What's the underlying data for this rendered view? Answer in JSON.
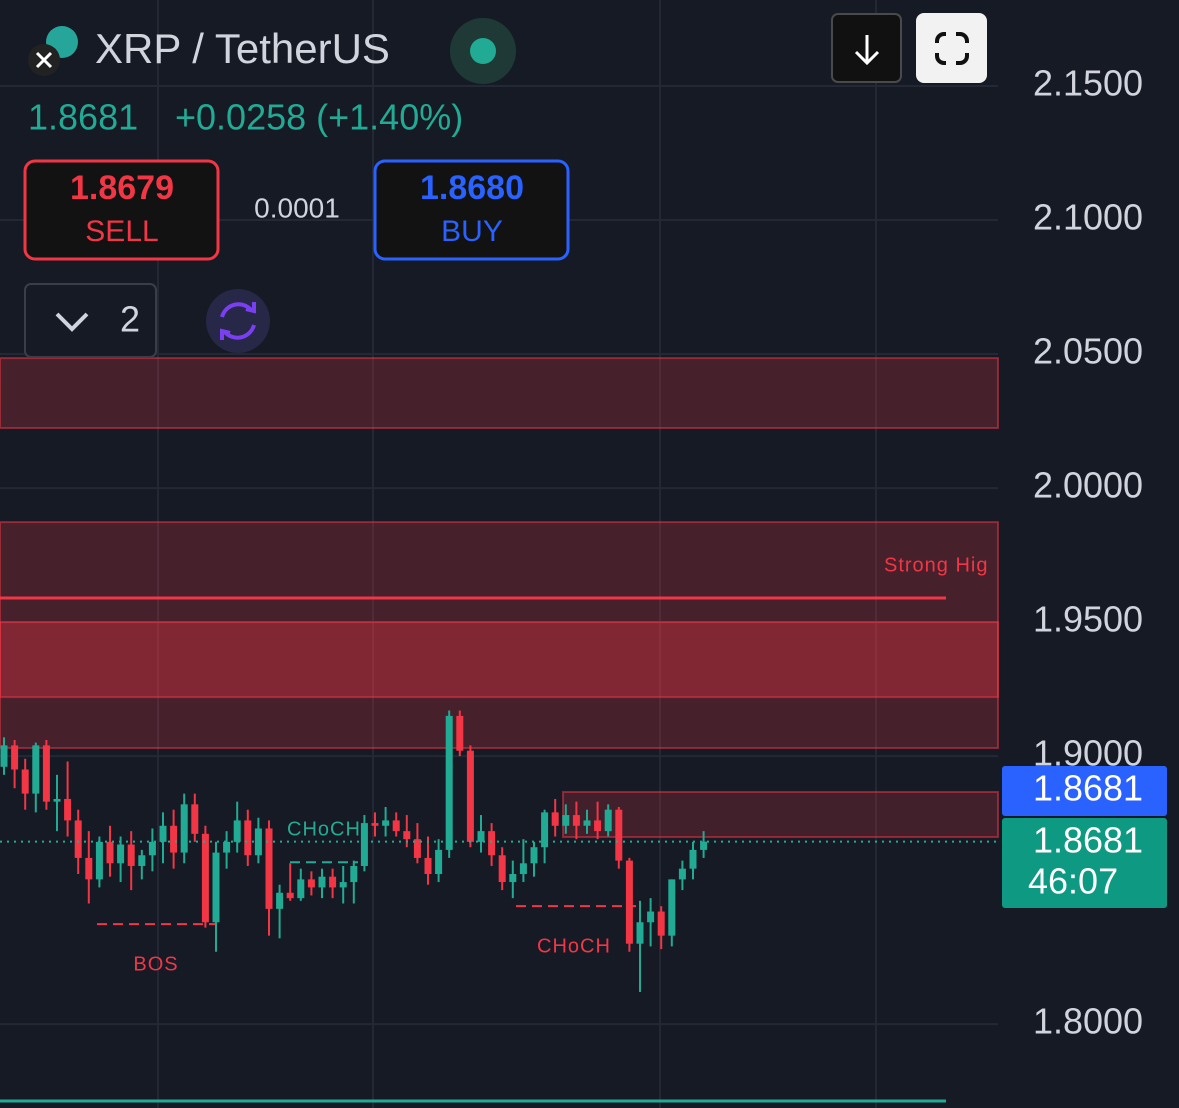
{
  "header": {
    "symbol": "XRP / TetherUS",
    "price": "1.8681",
    "change": "+0.0258 (+1.40%)",
    "sell_price": "1.8679",
    "sell_label": "SELL",
    "spread": "0.0001",
    "buy_price": "1.8680",
    "buy_label": "BUY",
    "count": "2"
  },
  "price_labels": {
    "bid": "1.8681",
    "last": "1.8681",
    "countdown": "46:07"
  },
  "chart_data": {
    "type": "candlestick",
    "up_color": "#22ab94",
    "down_color": "#f23645",
    "open": [
      1.896,
      1.904,
      1.895,
      1.886,
      1.904,
      1.883,
      1.884,
      1.876,
      1.862,
      1.854,
      1.868,
      1.86,
      1.867,
      1.859,
      1.863,
      1.868,
      1.874,
      1.864,
      1.882,
      1.871,
      1.838,
      1.864,
      1.868,
      1.876,
      1.863,
      1.873,
      1.843,
      1.849,
      1.847,
      1.854,
      1.851,
      1.855,
      1.851,
      1.853,
      1.859,
      1.875,
      1.874,
      1.876,
      1.872,
      1.869,
      1.862,
      1.856,
      1.865,
      1.915,
      1.902,
      1.868,
      1.872,
      1.863,
      1.853,
      1.856,
      1.86,
      1.866,
      1.879,
      1.874,
      1.878,
      1.874,
      1.876,
      1.872,
      1.88,
      1.861,
      1.83,
      1.838,
      1.842,
      1.833,
      1.854,
      1.858,
      1.865
    ],
    "high": [
      1.907,
      1.906,
      1.899,
      1.905,
      1.906,
      1.893,
      1.898,
      1.88,
      1.872,
      1.87,
      1.874,
      1.87,
      1.872,
      1.865,
      1.873,
      1.879,
      1.88,
      1.886,
      1.886,
      1.874,
      1.868,
      1.872,
      1.883,
      1.88,
      1.877,
      1.876,
      1.852,
      1.86,
      1.858,
      1.857,
      1.858,
      1.858,
      1.859,
      1.861,
      1.878,
      1.879,
      1.881,
      1.879,
      1.878,
      1.875,
      1.87,
      1.869,
      1.917,
      1.917,
      1.904,
      1.878,
      1.875,
      1.866,
      1.861,
      1.869,
      1.868,
      1.88,
      1.884,
      1.882,
      1.883,
      1.88,
      1.883,
      1.882,
      1.881,
      1.862,
      1.846,
      1.847,
      1.844,
      1.854,
      1.861,
      1.868,
      1.872
    ],
    "low": [
      1.893,
      1.888,
      1.88,
      1.879,
      1.88,
      1.872,
      1.87,
      1.856,
      1.845,
      1.851,
      1.855,
      1.853,
      1.85,
      1.854,
      1.857,
      1.86,
      1.858,
      1.86,
      1.868,
      1.836,
      1.827,
      1.858,
      1.864,
      1.859,
      1.86,
      1.833,
      1.832,
      1.846,
      1.846,
      1.848,
      1.847,
      1.847,
      1.845,
      1.845,
      1.857,
      1.87,
      1.87,
      1.87,
      1.866,
      1.86,
      1.852,
      1.853,
      1.862,
      1.9,
      1.866,
      1.864,
      1.859,
      1.85,
      1.847,
      1.853,
      1.855,
      1.86,
      1.87,
      1.871,
      1.869,
      1.871,
      1.869,
      1.87,
      1.858,
      1.827,
      1.812,
      1.829,
      1.828,
      1.829,
      1.85,
      1.854,
      1.862
    ],
    "close": [
      1.904,
      1.895,
      1.886,
      1.904,
      1.883,
      1.884,
      1.876,
      1.862,
      1.854,
      1.868,
      1.86,
      1.867,
      1.859,
      1.863,
      1.868,
      1.874,
      1.864,
      1.882,
      1.871,
      1.838,
      1.864,
      1.868,
      1.876,
      1.863,
      1.873,
      1.843,
      1.849,
      1.847,
      1.854,
      1.851,
      1.855,
      1.851,
      1.853,
      1.859,
      1.875,
      1.874,
      1.876,
      1.872,
      1.869,
      1.862,
      1.856,
      1.865,
      1.915,
      1.902,
      1.868,
      1.872,
      1.863,
      1.853,
      1.856,
      1.86,
      1.866,
      1.879,
      1.874,
      1.878,
      1.874,
      1.876,
      1.872,
      1.88,
      1.861,
      1.83,
      1.838,
      1.842,
      1.833,
      1.854,
      1.858,
      1.865,
      1.8681
    ],
    "ylim": [
      1.7687,
      2.1821
    ],
    "yticks": [
      {
        "value": 2.15,
        "label": "2.1500"
      },
      {
        "value": 2.1,
        "label": "2.1000"
      },
      {
        "value": 2.05,
        "label": "2.0500"
      },
      {
        "value": 2.0,
        "label": "2.0000"
      },
      {
        "value": 1.95,
        "label": "1.9500"
      },
      {
        "value": 1.9,
        "label": "1.9000"
      },
      {
        "value": 1.8,
        "label": "1.8000"
      }
    ],
    "grid": true,
    "zones": [
      {
        "top": 2.0485,
        "bottom": 2.0224
      },
      {
        "top": 1.9873,
        "bottom": 1.903
      },
      {
        "top": 1.95,
        "bottom": 1.922
      },
      {
        "top": 1.8866,
        "bottom": 1.8698
      }
    ],
    "levels": [
      1.959,
      1.7713
    ],
    "structure_lines": [
      1.8373,
      1.8604,
      1.844
    ],
    "annotations": [
      "Strong Hig",
      "CHoCH",
      "BOS",
      "CHoCH"
    ]
  }
}
